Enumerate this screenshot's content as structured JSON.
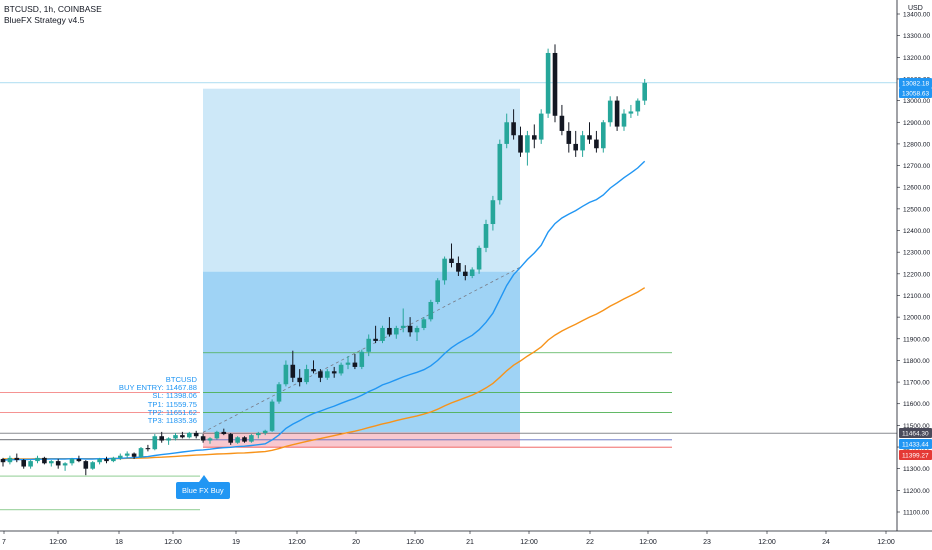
{
  "header": {
    "symbol_line": "BTCUSD, 1h, COINBASE",
    "indicator": "BlueFX Strategy v4.5"
  },
  "currency": "USD",
  "colors": {
    "up": "#26a69a",
    "down": "#131722",
    "profit_zone": "#9fd3f5",
    "profit_zone_light": "#cde8f8",
    "loss_zone": "#f8c8cf",
    "ema_fast": "#2196f3",
    "ema_slow": "#f7931a",
    "tp_line": "#4caf50",
    "sl_line": "#ef5350",
    "entry_line": "#131722",
    "axis_text": "#131722",
    "info_text": "#2196f3"
  },
  "info_box": {
    "lines": [
      "BTCUSD",
      "BUY ENTRY: 11467.88",
      "SL: 11398.06",
      "TP1: 11559.75",
      "TP2: 11651.62",
      "TP3: 11835.36"
    ]
  },
  "signal_label": "Blue FX Buy",
  "chart_data": {
    "type": "candlestick",
    "y_axis_ticks": [
      "13400.00",
      "13300.00",
      "13200.00",
      "13100.00",
      "13000.00",
      "12900.00",
      "12800.00",
      "12700.00",
      "12600.00",
      "12500.00",
      "12400.00",
      "12300.00",
      "12200.00",
      "12100.00",
      "12000.00",
      "11900.00",
      "11800.00",
      "11700.00",
      "11600.00",
      "11500.00",
      "11400.00",
      "11300.00",
      "11200.00",
      "11100.00"
    ],
    "ylim": [
      11060,
      13460
    ],
    "x_axis_ticks": [
      "7",
      "12:00",
      "18",
      "12:00",
      "19",
      "12:00",
      "20",
      "12:00",
      "21",
      "12:00",
      "22",
      "12:00",
      "23",
      "12:00",
      "24",
      "12:00"
    ],
    "price_labels": [
      {
        "value": "13082.18",
        "price": 13082.18,
        "bg": "#2196f3"
      },
      {
        "value": "13058.63",
        "price": 13058.63,
        "bg": "#2196f3"
      },
      {
        "value": "11464.30",
        "price": 11464.3,
        "bg": "#4a4a5a"
      },
      {
        "value": "11433.44",
        "price": 11433.44,
        "bg": "#2196f3"
      },
      {
        "value": "11399.27",
        "price": 11399.27,
        "bg": "#e53935"
      }
    ],
    "levels": {
      "entry": 11467.88,
      "sl": 11398.06,
      "tp1": 11559.75,
      "tp2": 11651.62,
      "tp3": 11835.36,
      "zone_top": 13055,
      "zone_mid": 12210
    },
    "candles": [
      [
        11345,
        11350,
        11310,
        11330
      ],
      [
        11330,
        11360,
        11320,
        11350
      ],
      [
        11350,
        11370,
        11330,
        11340
      ],
      [
        11340,
        11345,
        11300,
        11310
      ],
      [
        11310,
        11340,
        11300,
        11335
      ],
      [
        11335,
        11360,
        11325,
        11350
      ],
      [
        11350,
        11355,
        11320,
        11325
      ],
      [
        11325,
        11340,
        11310,
        11335
      ],
      [
        11335,
        11345,
        11300,
        11315
      ],
      [
        11315,
        11330,
        11290,
        11325
      ],
      [
        11325,
        11350,
        11315,
        11345
      ],
      [
        11345,
        11360,
        11330,
        11335
      ],
      [
        11335,
        11340,
        11270,
        11300
      ],
      [
        11300,
        11335,
        11295,
        11330
      ],
      [
        11330,
        11350,
        11320,
        11345
      ],
      [
        11345,
        11355,
        11325,
        11335
      ],
      [
        11335,
        11355,
        11330,
        11350
      ],
      [
        11350,
        11370,
        11340,
        11360
      ],
      [
        11360,
        11380,
        11350,
        11370
      ],
      [
        11370,
        11375,
        11345,
        11355
      ],
      [
        11355,
        11400,
        11350,
        11395
      ],
      [
        11395,
        11410,
        11380,
        11390
      ],
      [
        11390,
        11460,
        11385,
        11450
      ],
      [
        11450,
        11470,
        11420,
        11430
      ],
      [
        11430,
        11445,
        11410,
        11440
      ],
      [
        11440,
        11465,
        11430,
        11455
      ],
      [
        11455,
        11470,
        11440,
        11445
      ],
      [
        11445,
        11470,
        11440,
        11465
      ],
      [
        11465,
        11475,
        11440,
        11450
      ],
      [
        11450,
        11460,
        11420,
        11430
      ],
      [
        11430,
        11445,
        11415,
        11440
      ],
      [
        11440,
        11475,
        11435,
        11470
      ],
      [
        11470,
        11485,
        11455,
        11460
      ],
      [
        11460,
        11465,
        11410,
        11420
      ],
      [
        11420,
        11450,
        11415,
        11445
      ],
      [
        11445,
        11450,
        11420,
        11425
      ],
      [
        11425,
        11460,
        11420,
        11455
      ],
      [
        11455,
        11470,
        11440,
        11465
      ],
      [
        11465,
        11480,
        11455,
        11475
      ],
      [
        11475,
        11620,
        11470,
        11610
      ],
      [
        11610,
        11700,
        11600,
        11690
      ],
      [
        11690,
        11800,
        11680,
        11780
      ],
      [
        11780,
        11845,
        11700,
        11720
      ],
      [
        11720,
        11760,
        11680,
        11700
      ],
      [
        11700,
        11780,
        11690,
        11760
      ],
      [
        11760,
        11800,
        11740,
        11750
      ],
      [
        11750,
        11760,
        11700,
        11720
      ],
      [
        11720,
        11760,
        11710,
        11750
      ],
      [
        11750,
        11770,
        11720,
        11740
      ],
      [
        11740,
        11790,
        11730,
        11780
      ],
      [
        11780,
        11820,
        11760,
        11790
      ],
      [
        11790,
        11830,
        11760,
        11770
      ],
      [
        11770,
        11850,
        11760,
        11840
      ],
      [
        11840,
        11920,
        11820,
        11900
      ],
      [
        11900,
        11960,
        11880,
        11890
      ],
      [
        11890,
        11960,
        11880,
        11950
      ],
      [
        11950,
        12000,
        11910,
        11920
      ],
      [
        11920,
        11960,
        11900,
        11950
      ],
      [
        11950,
        12040,
        11930,
        11960
      ],
      [
        11960,
        12000,
        11910,
        11930
      ],
      [
        11930,
        11960,
        11890,
        11950
      ],
      [
        11950,
        12000,
        11940,
        11990
      ],
      [
        11990,
        12080,
        11980,
        12070
      ],
      [
        12070,
        12180,
        12060,
        12170
      ],
      [
        12170,
        12280,
        12150,
        12270
      ],
      [
        12270,
        12340,
        12230,
        12250
      ],
      [
        12250,
        12280,
        12190,
        12210
      ],
      [
        12210,
        12240,
        12170,
        12190
      ],
      [
        12190,
        12230,
        12180,
        12220
      ],
      [
        12220,
        12330,
        12200,
        12320
      ],
      [
        12320,
        12450,
        12300,
        12430
      ],
      [
        12430,
        12560,
        12400,
        12540
      ],
      [
        12540,
        12820,
        12520,
        12800
      ],
      [
        12800,
        12940,
        12780,
        12900
      ],
      [
        12900,
        12960,
        12820,
        12840
      ],
      [
        12840,
        12880,
        12740,
        12760
      ],
      [
        12760,
        12860,
        12700,
        12840
      ],
      [
        12840,
        12890,
        12780,
        12820
      ],
      [
        12820,
        12960,
        12800,
        12940
      ],
      [
        12940,
        13240,
        12920,
        13220
      ],
      [
        13220,
        13260,
        12900,
        12930
      ],
      [
        12930,
        12980,
        12840,
        12860
      ],
      [
        12860,
        12900,
        12760,
        12800
      ],
      [
        12800,
        12860,
        12740,
        12770
      ],
      [
        12770,
        12860,
        12740,
        12840
      ],
      [
        12840,
        12900,
        12800,
        12820
      ],
      [
        12820,
        12860,
        12760,
        12780
      ],
      [
        12780,
        12910,
        12760,
        12900
      ],
      [
        12900,
        13020,
        12880,
        13000
      ],
      [
        13000,
        13020,
        12860,
        12880
      ],
      [
        12880,
        12960,
        12860,
        12940
      ],
      [
        12940,
        12980,
        12920,
        12950
      ],
      [
        12950,
        13010,
        12930,
        13000
      ],
      [
        13000,
        13100,
        12980,
        13082
      ]
    ],
    "ema_fast": [
      11340,
      11341,
      11342,
      11342,
      11343,
      11344,
      11344,
      11345,
      11345,
      11345,
      11346,
      11346,
      11345,
      11345,
      11346,
      11346,
      11347,
      11348,
      11350,
      11351,
      11354,
      11356,
      11361,
      11365,
      11369,
      11373,
      11377,
      11381,
      11385,
      11387,
      11390,
      11394,
      11397,
      11399,
      11402,
      11404,
      11407,
      11411,
      11415,
      11433,
      11456,
      11486,
      11506,
      11522,
      11540,
      11555,
      11566,
      11578,
      11589,
      11602,
      11614,
      11625,
      11639,
      11656,
      11670,
      11687,
      11698,
      11711,
      11724,
      11735,
      11745,
      11757,
      11775,
      11800,
      11832,
      11859,
      11880,
      11898,
      11916,
      11942,
      11976,
      12018,
      12082,
      12146,
      12196,
      12230,
      12266,
      12296,
      12332,
      12393,
      12432,
      12458,
      12476,
      12492,
      12512,
      12530,
      12543,
      12564,
      12596,
      12619,
      12644,
      12666,
      12689,
      12720
    ],
    "ema_slow": [
      11345,
      11345,
      11345,
      11345,
      11345,
      11346,
      11346,
      11346,
      11346,
      11346,
      11346,
      11346,
      11346,
      11346,
      11346,
      11346,
      11347,
      11347,
      11348,
      11348,
      11349,
      11350,
      11352,
      11353,
      11355,
      11357,
      11359,
      11361,
      11363,
      11364,
      11366,
      11368,
      11369,
      11370,
      11372,
      11373,
      11375,
      11377,
      11379,
      11385,
      11393,
      11403,
      11411,
      11418,
      11426,
      11433,
      11439,
      11446,
      11453,
      11460,
      11467,
      11473,
      11481,
      11490,
      11498,
      11507,
      11514,
      11522,
      11530,
      11537,
      11544,
      11552,
      11562,
      11575,
      11590,
      11604,
      11616,
      11628,
      11640,
      11655,
      11673,
      11694,
      11722,
      11752,
      11778,
      11798,
      11820,
      11840,
      11862,
      11894,
      11917,
      11936,
      11952,
      11967,
      11984,
      12000,
      12014,
      12031,
      12051,
      12067,
      12084,
      12100,
      12116,
      12136
    ]
  }
}
